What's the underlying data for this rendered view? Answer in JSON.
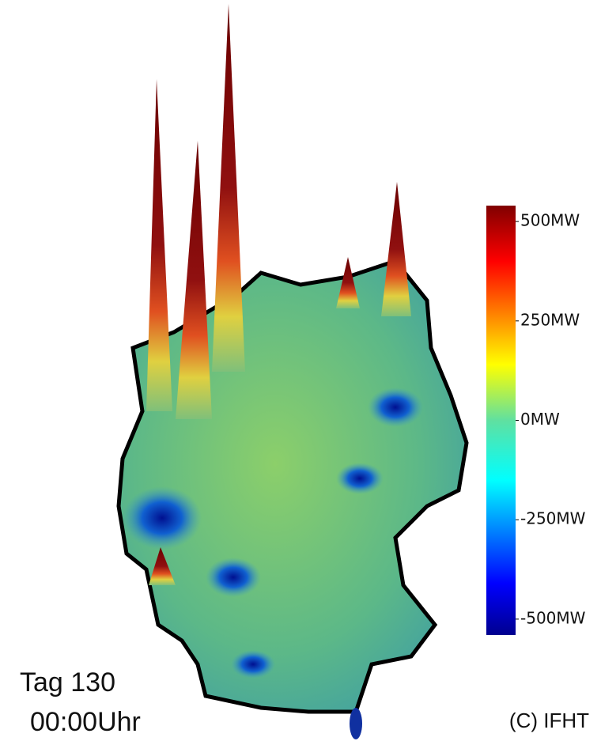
{
  "colorbar": {
    "lim": [
      -540,
      540
    ],
    "ticks": [
      {
        "value": 500,
        "label": "500MW"
      },
      {
        "value": 250,
        "label": "250MW"
      },
      {
        "value": 0,
        "label": "0MW"
      },
      {
        "value": -250,
        "label": "-250MW"
      },
      {
        "value": -500,
        "label": "-500MW"
      }
    ]
  },
  "caption": {
    "day": "Tag 130",
    "time": "00:00Uhr"
  },
  "copyright": "(C) IFHT"
}
